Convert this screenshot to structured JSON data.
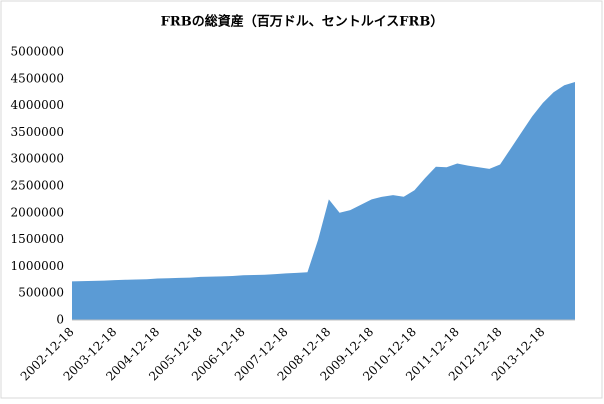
{
  "chart_data": {
    "type": "area",
    "title": "FRBの総資産（百万ドル、セントルイスFRB）",
    "categories": [
      "2002-12-18",
      null,
      null,
      null,
      "2003-12-18",
      null,
      null,
      null,
      "2004-12-18",
      null,
      null,
      null,
      "2005-12-18",
      null,
      null,
      null,
      "2006-12-18",
      null,
      null,
      null,
      "2007-12-18",
      null,
      null,
      null,
      "2008-12-18",
      null,
      null,
      null,
      "2009-12-18",
      null,
      null,
      null,
      "2010-12-18",
      null,
      null,
      null,
      "2011-12-18",
      null,
      null,
      null,
      "2012-12-18",
      null,
      null,
      null,
      "2013-12-18",
      null,
      null,
      null
    ],
    "values": [
      720000,
      725000,
      730000,
      735000,
      745000,
      750000,
      755000,
      760000,
      775000,
      780000,
      785000,
      790000,
      805000,
      810000,
      815000,
      820000,
      835000,
      840000,
      845000,
      855000,
      870000,
      880000,
      890000,
      1500000,
      2250000,
      2000000,
      2050000,
      2150000,
      2250000,
      2300000,
      2330000,
      2300000,
      2420000,
      2650000,
      2860000,
      2850000,
      2920000,
      2880000,
      2850000,
      2820000,
      2900000,
      3200000,
      3500000,
      3800000,
      4050000,
      4250000,
      4380000,
      4440000
    ],
    "color": "#5b9bd5",
    "ylim": [
      0,
      5000000
    ],
    "yticks": [
      0,
      500000,
      1000000,
      1500000,
      2000000,
      2500000,
      3000000,
      3500000,
      4000000,
      4500000,
      5000000
    ],
    "grid": false
  }
}
